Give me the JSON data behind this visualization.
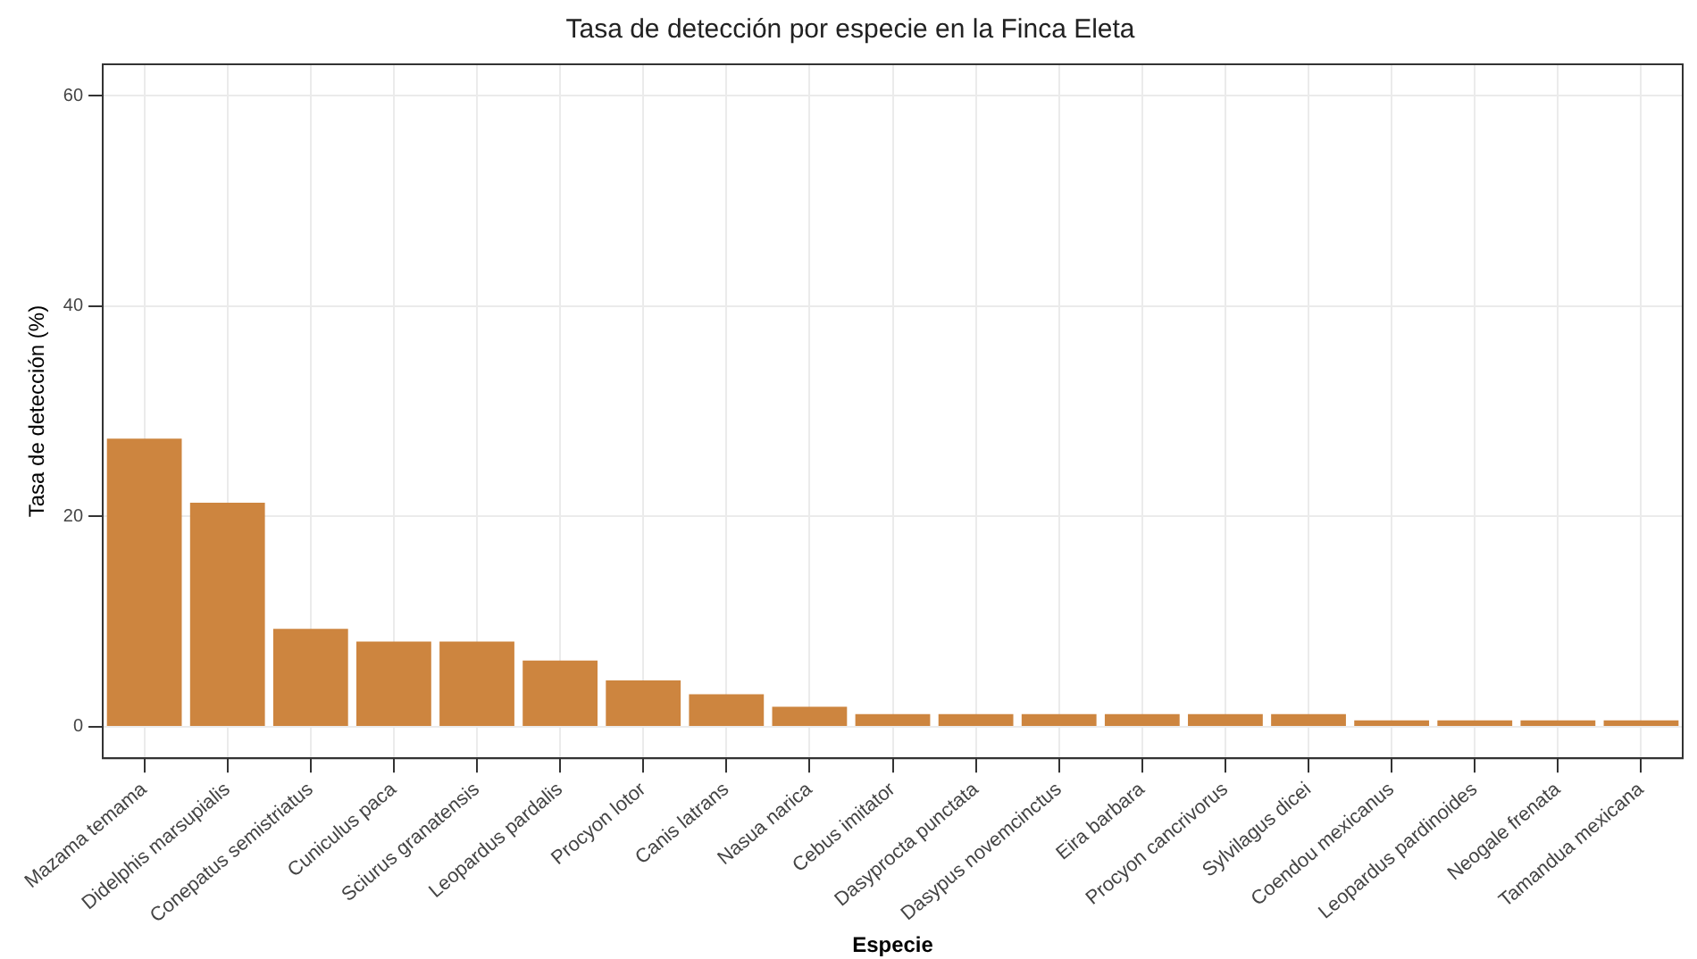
{
  "chart_data": {
    "type": "bar",
    "title": "Tasa de detección por especie en la Finca Eleta",
    "xlabel": "Especie",
    "ylabel": "Tasa de detección (%)",
    "categories": [
      "Mazama temama",
      "Didelphis marsupialis",
      "Conepatus semistriatus",
      "Cuniculus paca",
      "Sciurus granatensis",
      "Leopardus pardalis",
      "Procyon lotor",
      "Canis latrans",
      "Nasua narica",
      "Cebus imitator",
      "Dasyprocta punctata",
      "Dasypus novemcinctus",
      "Eira barbara",
      "Procyon cancrivorus",
      "Sylvilagus dicei",
      "Coendou mexicanus",
      "Leopardus pardinoides",
      "Neogale frenata",
      "Tamandua mexicana"
    ],
    "values": [
      27.4,
      21.3,
      9.3,
      8.1,
      8.1,
      6.3,
      4.4,
      3.1,
      1.9,
      1.2,
      1.2,
      1.2,
      1.2,
      1.2,
      1.2,
      0.6,
      0.6,
      0.6,
      0.6
    ],
    "color": "#cd853f",
    "ylim": [
      -3,
      63
    ],
    "yticks": [
      0,
      20,
      40,
      60
    ],
    "grid": true
  }
}
